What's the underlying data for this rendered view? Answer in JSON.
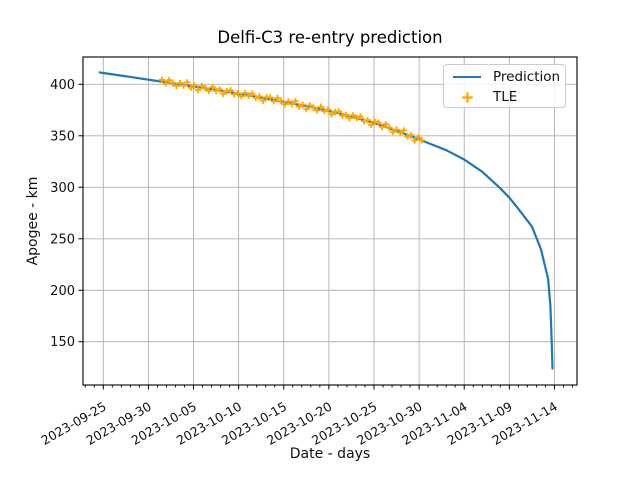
{
  "figure": {
    "title": "Delfi-C3 re-entry prediction",
    "xlabel": "Date - days",
    "ylabel": "Apogee - km"
  },
  "legend": {
    "position": "upper right",
    "items": [
      {
        "label": "Prediction",
        "marker": "line",
        "color": "#1f77b4"
      },
      {
        "label": "TLE",
        "marker": "plus",
        "color": "#ffa500"
      }
    ]
  },
  "chart_data": {
    "type": "line",
    "title": "Delfi-C3 re-entry prediction",
    "xlabel": "Date - days",
    "ylabel": "Apogee - km",
    "grid": true,
    "legend_position": "upper right",
    "x_axis": {
      "unit": "days relative to 2023-09-25",
      "xlim": [
        -2.25,
        52.5
      ],
      "minor_tick_step_days": 1,
      "major_ticks": [
        {
          "day": 0,
          "label": "2023-09-25"
        },
        {
          "day": 5,
          "label": "2023-09-30"
        },
        {
          "day": 10,
          "label": "2023-10-05"
        },
        {
          "day": 15,
          "label": "2023-10-10"
        },
        {
          "day": 20,
          "label": "2023-10-15"
        },
        {
          "day": 25,
          "label": "2023-10-20"
        },
        {
          "day": 30,
          "label": "2023-10-25"
        },
        {
          "day": 35,
          "label": "2023-10-30"
        },
        {
          "day": 40,
          "label": "2023-11-04"
        },
        {
          "day": 45,
          "label": "2023-11-09"
        },
        {
          "day": 50,
          "label": "2023-11-14"
        }
      ]
    },
    "y_axis": {
      "ylim": [
        108,
        426.5
      ],
      "ticks": [
        150,
        200,
        250,
        300,
        350,
        400
      ]
    },
    "style": {
      "background": "#ffffff",
      "grid_color": "#b0b0b0",
      "spine_color": "#000000",
      "tick_color": "#000000",
      "text_color": "#111111",
      "prediction_color": "#1f77b4",
      "tle_color": "#ffa500"
    },
    "series": [
      {
        "name": "Prediction",
        "type": "line",
        "color": "#1f77b4",
        "points": [
          [
            -0.4,
            411.5
          ],
          [
            0,
            411.0
          ],
          [
            2,
            408.4
          ],
          [
            4,
            405.8
          ],
          [
            6,
            403.2
          ],
          [
            8,
            400.6
          ],
          [
            10,
            398.0
          ],
          [
            12,
            395.2
          ],
          [
            14,
            392.3
          ],
          [
            16,
            389.3
          ],
          [
            18,
            386.2
          ],
          [
            20,
            383.0
          ],
          [
            22,
            379.6
          ],
          [
            24,
            376.0
          ],
          [
            26,
            372.0
          ],
          [
            28,
            367.5
          ],
          [
            30,
            362.5
          ],
          [
            32,
            356.5
          ],
          [
            34,
            350.0
          ],
          [
            36,
            343.0
          ],
          [
            38,
            336.0
          ],
          [
            40,
            327.0
          ],
          [
            42,
            315.0
          ],
          [
            44,
            299.0
          ],
          [
            45,
            290.0
          ],
          [
            46,
            279.0
          ],
          [
            47,
            267.5
          ],
          [
            47.5,
            262.0
          ],
          [
            48.5,
            240.0
          ],
          [
            49.3,
            211.0
          ],
          [
            49.55,
            185.0
          ],
          [
            49.7,
            150.0
          ],
          [
            49.78,
            124.0
          ]
        ]
      },
      {
        "name": "TLE",
        "type": "scatter",
        "marker": "plus",
        "color": "#ffa500",
        "points": [
          [
            6.5,
            404.4
          ],
          [
            6.9,
            400.9
          ],
          [
            7.3,
            404.1
          ],
          [
            7.7,
            401.4
          ],
          [
            8.1,
            398.3
          ],
          [
            8.5,
            401.1
          ],
          [
            8.9,
            398.8
          ],
          [
            9.3,
            401.8
          ],
          [
            9.7,
            396.7
          ],
          [
            10.1,
            398.7
          ],
          [
            10.5,
            394.5
          ],
          [
            10.9,
            398.2
          ],
          [
            11.3,
            396.3
          ],
          [
            11.7,
            393.7
          ],
          [
            12.1,
            397.4
          ],
          [
            12.5,
            393.6
          ],
          [
            12.9,
            395.1
          ],
          [
            13.3,
            390.8
          ],
          [
            13.7,
            393.3
          ],
          [
            14.1,
            394.2
          ],
          [
            14.5,
            390.2
          ],
          [
            14.9,
            391.3
          ],
          [
            15.3,
            388.4
          ],
          [
            15.7,
            391.5
          ],
          [
            16.1,
            388.9
          ],
          [
            16.5,
            390.9
          ],
          [
            16.9,
            386.8
          ],
          [
            17.3,
            388.2
          ],
          [
            17.7,
            384.1
          ],
          [
            18.1,
            387.4
          ],
          [
            18.5,
            387.2
          ],
          [
            18.9,
            383.5
          ],
          [
            19.3,
            386.7
          ],
          [
            19.7,
            383.9
          ],
          [
            20.1,
            380.6
          ],
          [
            20.5,
            383.3
          ],
          [
            20.9,
            380.9
          ],
          [
            21.3,
            383.7
          ],
          [
            21.7,
            378.4
          ],
          [
            22.1,
            380.2
          ],
          [
            22.5,
            375.9
          ],
          [
            22.9,
            379.5
          ],
          [
            23.3,
            377.3
          ],
          [
            23.7,
            374.6
          ],
          [
            24.1,
            378.1
          ],
          [
            24.5,
            374.1
          ],
          [
            24.9,
            375.4
          ],
          [
            25.3,
            370.9
          ],
          [
            25.7,
            373.2
          ],
          [
            26.1,
            373.8
          ],
          [
            26.5,
            369.5
          ],
          [
            26.9,
            370.3
          ],
          [
            27.3,
            367.1
          ],
          [
            27.7,
            369.9
          ],
          [
            28.1,
            367.1
          ],
          [
            28.5,
            368.7
          ],
          [
            28.9,
            364.2
          ],
          [
            29.3,
            365.2
          ],
          [
            29.7,
            360.7
          ],
          [
            30.1,
            363.6
          ],
          [
            30.5,
            362.8
          ],
          [
            30.9,
            358.6
          ],
          [
            31.3,
            361.2
          ],
          [
            31.7,
            357.8
          ],
          [
            32.1,
            354.0
          ],
          [
            32.5,
            356.0
          ],
          [
            32.9,
            353.0
          ],
          [
            33.3,
            355.2
          ],
          [
            33.7,
            349.3
          ],
          [
            34.1,
            350.5
          ],
          [
            34.5,
            345.5
          ],
          [
            34.9,
            348.4
          ],
          [
            35.3,
            345.6
          ]
        ]
      }
    ]
  }
}
